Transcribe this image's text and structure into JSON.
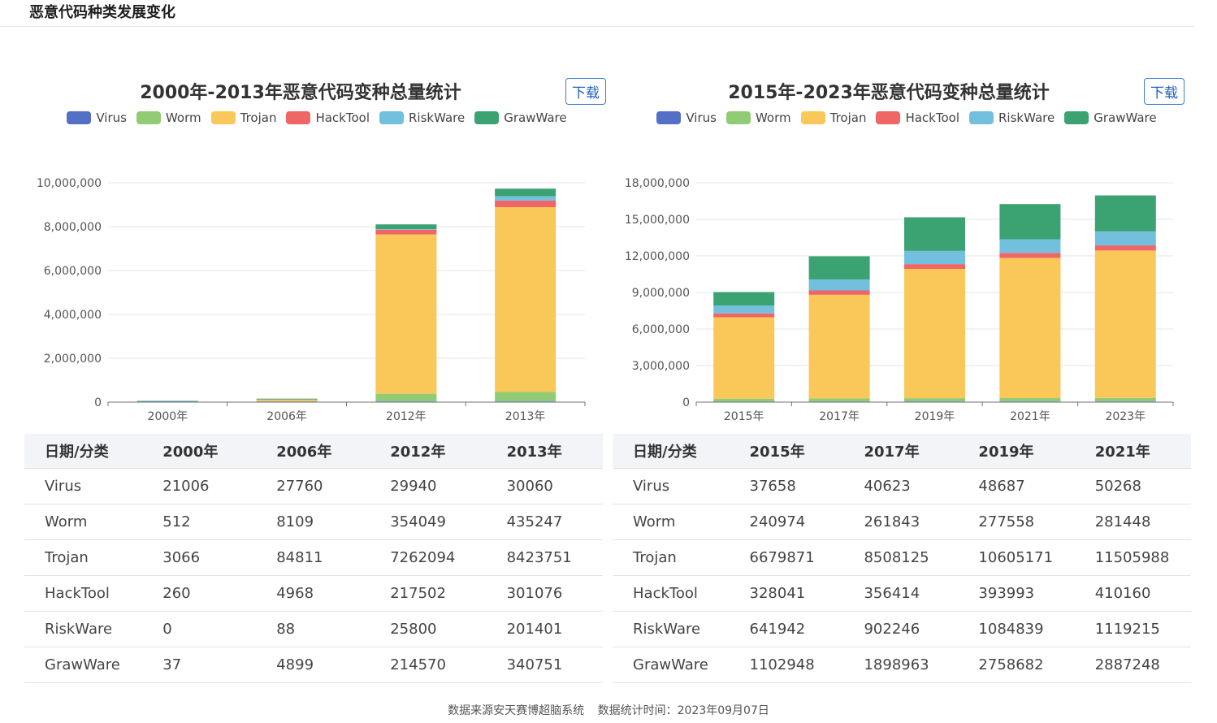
{
  "page": {
    "title": "恶意代码种类发展变化"
  },
  "legend_items": [
    {
      "name": "Virus",
      "color": "#5470c6"
    },
    {
      "name": "Worm",
      "color": "#91cc75"
    },
    {
      "name": "Trojan",
      "color": "#fac858"
    },
    {
      "name": "HackTool",
      "color": "#ee6666"
    },
    {
      "name": "RiskWare",
      "color": "#73c0de"
    },
    {
      "name": "GrawWare",
      "color": "#3ba272"
    }
  ],
  "left": {
    "title": "2000年-2013年恶意代码变种总量统计",
    "download_label": "下载",
    "table_headers": [
      "日期/分类",
      "2000年",
      "2006年",
      "2012年",
      "2013年"
    ],
    "table_rows": [
      [
        "Virus",
        "21006",
        "27760",
        "29940",
        "30060"
      ],
      [
        "Worm",
        "512",
        "8109",
        "354049",
        "435247"
      ],
      [
        "Trojan",
        "3066",
        "84811",
        "7262094",
        "8423751"
      ],
      [
        "HackTool",
        "260",
        "4968",
        "217502",
        "301076"
      ],
      [
        "RiskWare",
        "0",
        "88",
        "25800",
        "201401"
      ],
      [
        "GrawWare",
        "37",
        "4899",
        "214570",
        "340751"
      ]
    ]
  },
  "right": {
    "title": "2015年-2023年恶意代码变种总量统计",
    "download_label": "下载",
    "table_headers": [
      "日期/分类",
      "2015年",
      "2017年",
      "2019年",
      "2021年"
    ],
    "table_rows": [
      [
        "Virus",
        "37658",
        "40623",
        "48687",
        "50268"
      ],
      [
        "Worm",
        "240974",
        "261843",
        "277558",
        "281448"
      ],
      [
        "Trojan",
        "6679871",
        "8508125",
        "10605171",
        "11505988"
      ],
      [
        "HackTool",
        "328041",
        "356414",
        "393993",
        "410160"
      ],
      [
        "RiskWare",
        "641942",
        "902246",
        "1084839",
        "1119215"
      ],
      [
        "GrawWare",
        "1102948",
        "1898963",
        "2758682",
        "2887248"
      ]
    ]
  },
  "footer": {
    "source": "数据来源安天赛博超脑系统",
    "time": "数据统计时间：2023年09月07日"
  },
  "chart_data": [
    {
      "type": "bar",
      "stacked": true,
      "title": "2000年-2013年恶意代码变种总量统计",
      "categories": [
        "2000年",
        "2006年",
        "2012年",
        "2013年"
      ],
      "ylim": [
        0,
        10000000
      ],
      "yticks": [
        0,
        2000000,
        4000000,
        6000000,
        8000000,
        10000000
      ],
      "ytick_labels": [
        "0",
        "2,000,000",
        "4,000,000",
        "6,000,000",
        "8,000,000",
        "10,000,000"
      ],
      "legend_position": "top",
      "grid": true,
      "series": [
        {
          "name": "Virus",
          "values": [
            21006,
            27760,
            29940,
            30060
          ]
        },
        {
          "name": "Worm",
          "values": [
            512,
            8109,
            354049,
            435247
          ]
        },
        {
          "name": "Trojan",
          "values": [
            3066,
            84811,
            7262094,
            8423751
          ]
        },
        {
          "name": "HackTool",
          "values": [
            260,
            4968,
            217502,
            301076
          ]
        },
        {
          "name": "RiskWare",
          "values": [
            0,
            88,
            25800,
            201401
          ]
        },
        {
          "name": "GrawWare",
          "values": [
            37,
            4899,
            214570,
            340751
          ]
        }
      ]
    },
    {
      "type": "bar",
      "stacked": true,
      "title": "2015年-2023年恶意代码变种总量统计",
      "categories": [
        "2015年",
        "2017年",
        "2019年",
        "2021年",
        "2023年"
      ],
      "ylim": [
        0,
        18000000
      ],
      "yticks": [
        0,
        3000000,
        6000000,
        9000000,
        12000000,
        15000000,
        18000000
      ],
      "ytick_labels": [
        "0",
        "3,000,000",
        "6,000,000",
        "9,000,000",
        "12,000,000",
        "15,000,000",
        "18,000,000"
      ],
      "legend_position": "top",
      "grid": true,
      "series": [
        {
          "name": "Virus",
          "values": [
            37658,
            40623,
            48687,
            50268,
            52000
          ]
        },
        {
          "name": "Worm",
          "values": [
            240974,
            261843,
            277558,
            281448,
            290000
          ]
        },
        {
          "name": "Trojan",
          "values": [
            6679871,
            8508125,
            10605171,
            11505988,
            12100000
          ]
        },
        {
          "name": "HackTool",
          "values": [
            328041,
            356414,
            393993,
            410160,
            420000
          ]
        },
        {
          "name": "RiskWare",
          "values": [
            641942,
            902246,
            1084839,
            1119215,
            1150000
          ]
        },
        {
          "name": "GrawWare",
          "values": [
            1102948,
            1898963,
            2758682,
            2887248,
            2950000
          ]
        }
      ]
    }
  ]
}
